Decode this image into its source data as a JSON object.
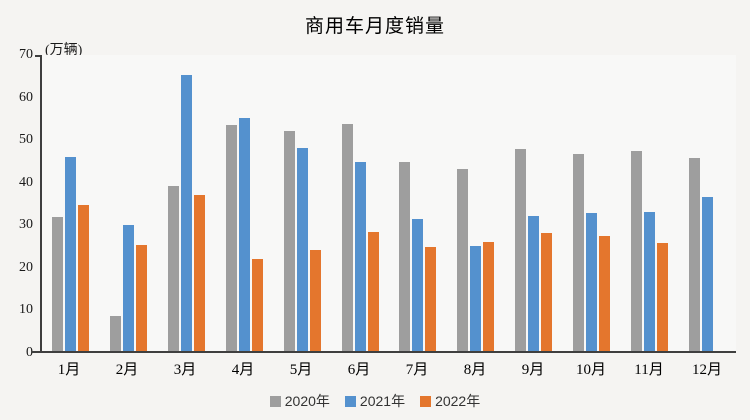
{
  "chart": {
    "title": "商用车月度销量",
    "unit_label": "(万辆)"
  },
  "chart_data": {
    "type": "bar",
    "title": "商用车月度销量",
    "ylabel": "(万辆)",
    "xlabel": "",
    "categories": [
      "1月",
      "2月",
      "3月",
      "4月",
      "5月",
      "6月",
      "7月",
      "8月",
      "9月",
      "10月",
      "11月",
      "12月"
    ],
    "series": [
      {
        "name": "2020年",
        "color": "#9E9E9E",
        "values": [
          31.8,
          8.4,
          39.0,
          53.4,
          52.0,
          53.6,
          44.8,
          43.1,
          47.8,
          46.5,
          47.4,
          45.7
        ]
      },
      {
        "name": "2021年",
        "color": "#5491CE",
        "values": [
          45.9,
          29.8,
          65.3,
          55.0,
          48.1,
          44.6,
          31.2,
          24.8,
          31.9,
          32.6,
          33.0,
          36.4
        ]
      },
      {
        "name": "2022年",
        "color": "#E4762D",
        "values": [
          34.5,
          25.0,
          37.0,
          21.8,
          23.9,
          28.1,
          24.6,
          25.9,
          28.0,
          27.3,
          25.5,
          null
        ]
      }
    ],
    "ylim": [
      0,
      70
    ],
    "yticks": [
      0,
      10,
      20,
      30,
      40,
      50,
      60,
      70
    ],
    "grid": false,
    "legend_position": "bottom",
    "colors": {
      "background": "#f5f4f2",
      "axis": "#3f3f3f",
      "series_2020": "#9E9E9E",
      "series_2021": "#5491CE",
      "series_2022": "#E4762D"
    }
  }
}
